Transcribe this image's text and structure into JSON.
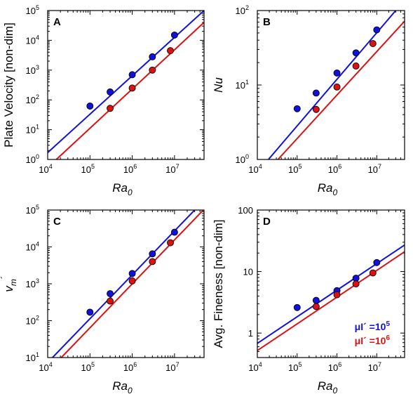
{
  "colors": {
    "blue": "#1111dd",
    "red": "#dd1111"
  },
  "legend": [
    {
      "label": "μI´ =10",
      "exp": "5",
      "color": "#1111dd"
    },
    {
      "label": "μI´ =10",
      "exp": "6",
      "color": "#dd1111"
    }
  ],
  "chart_data": [
    {
      "type": "scatter",
      "panel": "A",
      "xlabel": "Ra",
      "xlabel_sub": "0",
      "ylabel": "Plate Velocity [non-dim]",
      "xscale": "log",
      "yscale": "log",
      "xlim": [
        10000,
        50000000
      ],
      "ylim": [
        1,
        100000
      ],
      "x_ticks": [
        10000,
        100000,
        1000000,
        10000000
      ],
      "y_ticks": [
        1,
        10,
        100,
        1000,
        10000,
        100000
      ],
      "series": [
        {
          "color": "#1111dd",
          "x": [
            100000,
            300000,
            1000000,
            3000000,
            10000000
          ],
          "y": [
            62,
            185,
            700,
            2800,
            15000
          ],
          "fit": [
            [
              10000,
              1.7
            ],
            [
              50000000,
              100000
            ]
          ]
        },
        {
          "color": "#dd1111",
          "x": [
            300000,
            1000000,
            3000000,
            8000000
          ],
          "y": [
            52,
            250,
            1000,
            4500
          ],
          "fit": [
            [
              16000,
              1
            ],
            [
              50000000,
              40000
            ]
          ]
        }
      ]
    },
    {
      "type": "scatter",
      "panel": "B",
      "xlabel": "Ra",
      "xlabel_sub": "0",
      "ylabel": "Nu",
      "ylabel_italic": true,
      "xscale": "log",
      "yscale": "log",
      "xlim": [
        10000,
        50000000
      ],
      "ylim": [
        1,
        100
      ],
      "x_ticks": [
        10000,
        100000,
        1000000,
        10000000
      ],
      "y_ticks": [
        1,
        10,
        100
      ],
      "series": [
        {
          "color": "#1111dd",
          "x": [
            100000,
            300000,
            1000000,
            3000000,
            10000000
          ],
          "y": [
            4.8,
            7.8,
            14.5,
            27,
            55
          ],
          "fit": [
            [
              19000,
              1
            ],
            [
              30000000,
              100
            ]
          ]
        },
        {
          "color": "#dd1111",
          "x": [
            300000,
            1000000,
            3000000,
            8000000
          ],
          "y": [
            4.7,
            9.4,
            18,
            36
          ],
          "fit": [
            [
              33000,
              1
            ],
            [
              50000000,
              72
            ]
          ]
        }
      ]
    },
    {
      "type": "scatter",
      "panel": "C",
      "xlabel": "Ra",
      "xlabel_sub": "0",
      "ylabel": "v",
      "ylabel_sub": "m",
      "ylabel_prime": "´",
      "xscale": "log",
      "yscale": "log",
      "xlim": [
        10000,
        50000000
      ],
      "ylim": [
        10,
        100000
      ],
      "x_ticks": [
        10000,
        100000,
        1000000,
        10000000
      ],
      "y_ticks": [
        10,
        100,
        1000,
        10000,
        100000
      ],
      "series": [
        {
          "color": "#1111dd",
          "x": [
            100000,
            300000,
            1000000,
            3000000,
            10000000
          ],
          "y": [
            170,
            540,
            1900,
            6500,
            25000
          ],
          "fit": [
            [
              13000,
              10
            ],
            [
              30000000,
              100000
            ]
          ]
        },
        {
          "color": "#dd1111",
          "x": [
            300000,
            1000000,
            3000000,
            8000000
          ],
          "y": [
            340,
            1200,
            4000,
            13000
          ],
          "fit": [
            [
              21000,
              10
            ],
            [
              48000000,
              100000
            ]
          ]
        }
      ]
    },
    {
      "type": "scatter",
      "panel": "D",
      "xlabel": "Ra",
      "xlabel_sub": "0",
      "ylabel": "Avg. Fineness [non-dim]",
      "xscale": "log",
      "yscale": "log",
      "xlim": [
        10000,
        50000000
      ],
      "ylim": [
        0.4,
        100
      ],
      "x_ticks": [
        10000,
        100000,
        1000000,
        10000000
      ],
      "y_ticks": [
        1,
        10,
        100
      ],
      "series": [
        {
          "color": "#1111dd",
          "x": [
            100000,
            300000,
            1000000,
            3000000,
            10000000
          ],
          "y": [
            2.6,
            3.4,
            4.9,
            7.8,
            14
          ],
          "fit": [
            [
              10000,
              0.68
            ],
            [
              50000000,
              27
            ]
          ]
        },
        {
          "color": "#dd1111",
          "x": [
            300000,
            1000000,
            3000000,
            8000000
          ],
          "y": [
            2.7,
            4.2,
            6.3,
            9.5
          ],
          "fit": [
            [
              10000,
              0.52
            ],
            [
              50000000,
              21
            ]
          ]
        }
      ]
    }
  ]
}
